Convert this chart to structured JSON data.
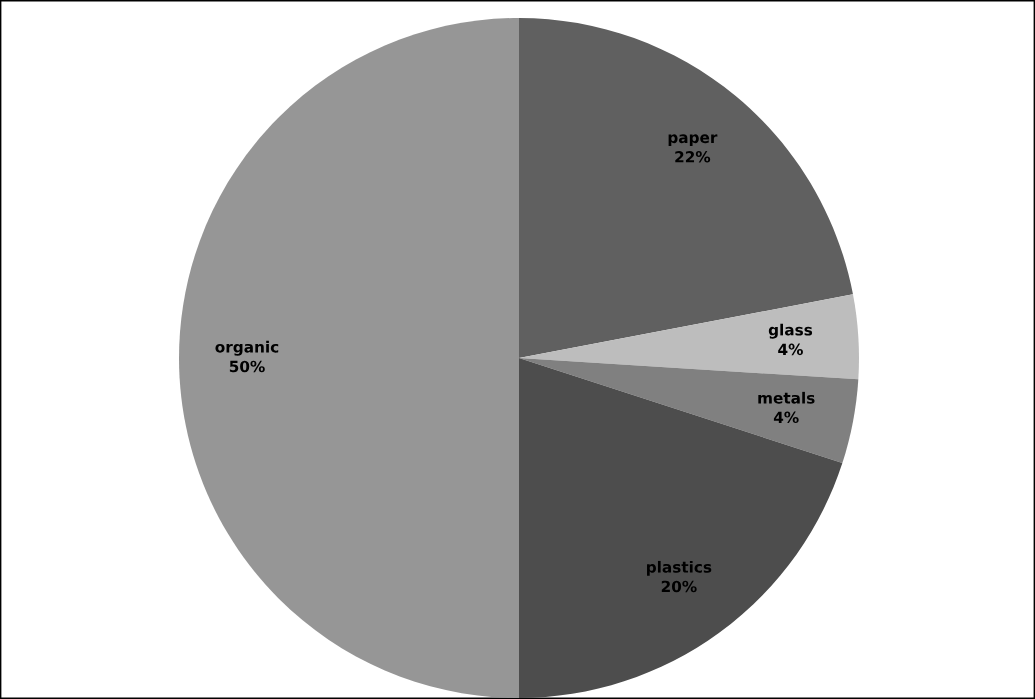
{
  "chart_data": {
    "type": "pie",
    "categories": [
      "paper",
      "glass",
      "metals",
      "plastics",
      "organic"
    ],
    "values": [
      22,
      4,
      4,
      20,
      50
    ],
    "colors": [
      "#606060",
      "#bdbdbd",
      "#808080",
      "#4d4d4d",
      "#969696"
    ],
    "value_labels": [
      "22%",
      "4%",
      "4%",
      "20%",
      "50%"
    ],
    "legend": false
  }
}
